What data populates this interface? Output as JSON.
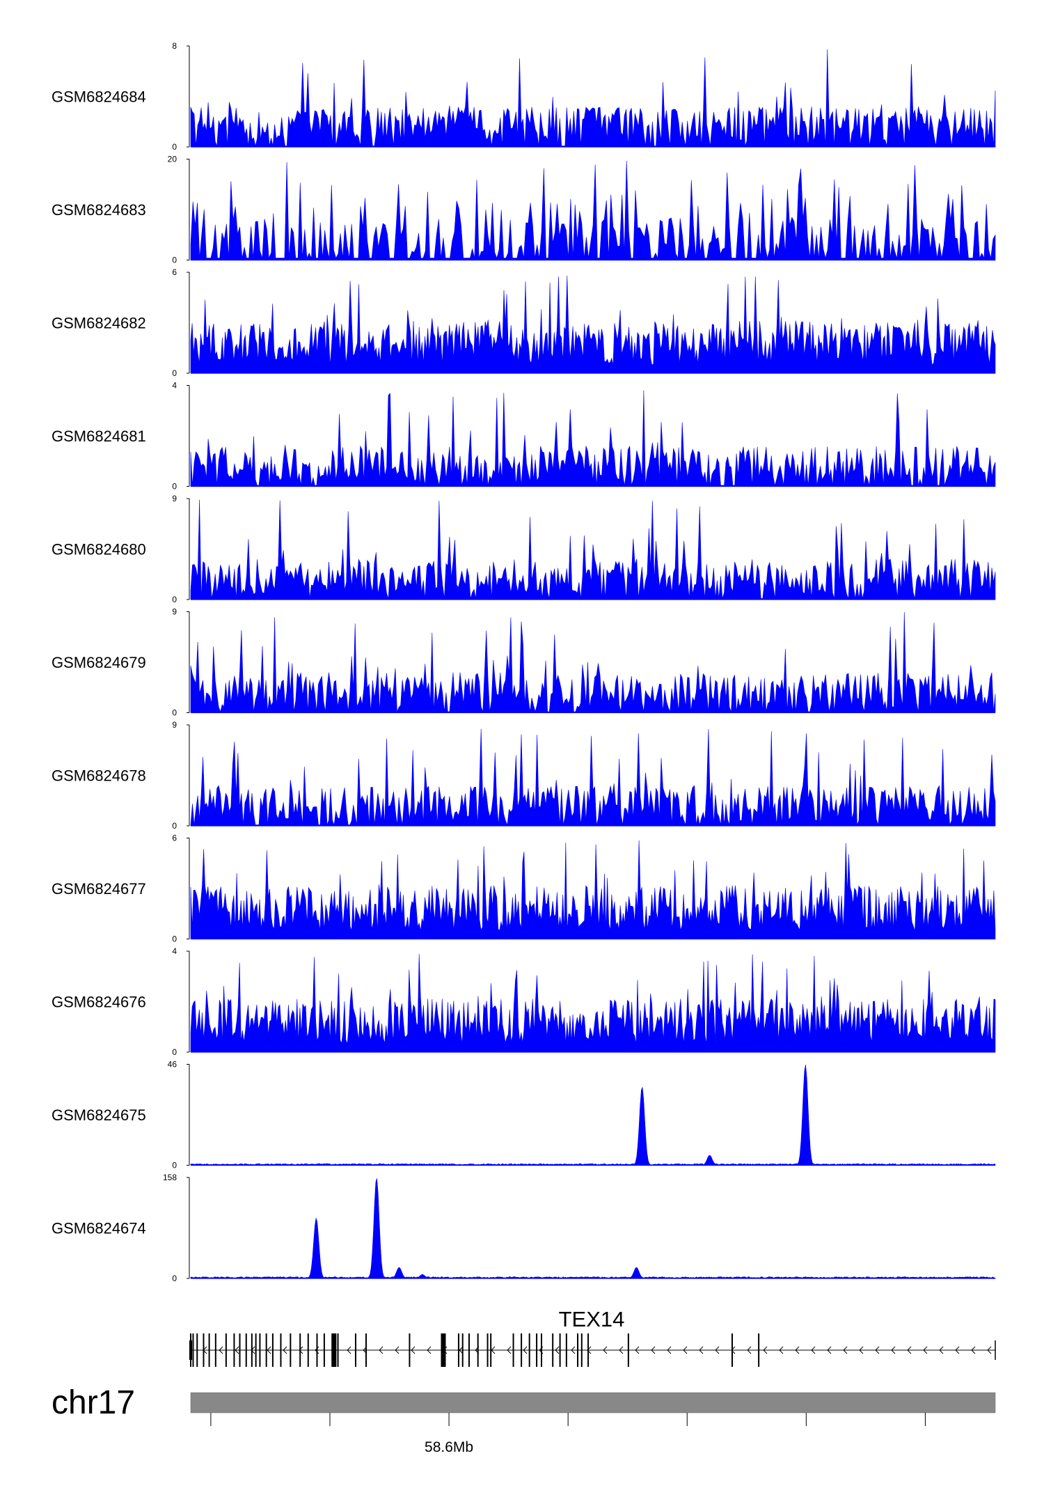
{
  "chart_data": {
    "type": "area",
    "title": "",
    "chromosome": "chr17",
    "position_label": "58.6Mb",
    "series_color": "#0000ff",
    "tracks": [
      {
        "name": "GSM6824684",
        "ymax": "8",
        "ymin": "0",
        "pattern": "noisy",
        "density": "medium"
      },
      {
        "name": "GSM6824683",
        "ymax": "20",
        "ymin": "0",
        "pattern": "noisy",
        "density": "sparse"
      },
      {
        "name": "GSM6824682",
        "ymax": "6",
        "ymin": "0",
        "pattern": "noisy",
        "density": "dense"
      },
      {
        "name": "GSM6824681",
        "ymax": "4",
        "ymin": "0",
        "pattern": "noisy",
        "density": "medium"
      },
      {
        "name": "GSM6824680",
        "ymax": "9",
        "ymin": "0",
        "pattern": "noisy",
        "density": "medium"
      },
      {
        "name": "GSM6824679",
        "ymax": "9",
        "ymin": "0",
        "pattern": "noisy",
        "density": "medium"
      },
      {
        "name": "GSM6824678",
        "ymax": "9",
        "ymin": "0",
        "pattern": "noisy",
        "density": "medium"
      },
      {
        "name": "GSM6824677",
        "ymax": "6",
        "ymin": "0",
        "pattern": "noisy",
        "density": "dense"
      },
      {
        "name": "GSM6824676",
        "ymax": "4",
        "ymin": "0",
        "pattern": "noisy",
        "density": "dense"
      },
      {
        "name": "GSM6824675",
        "ymax": "46",
        "ymin": "0",
        "pattern": "peaks",
        "peaks": [
          {
            "pos": 0.561,
            "height": 0.78
          },
          {
            "pos": 0.764,
            "height": 1.0
          },
          {
            "pos": 0.645,
            "height": 0.1
          }
        ]
      },
      {
        "name": "GSM6824674",
        "ymax": "158",
        "ymin": "0",
        "pattern": "peaks",
        "peaks": [
          {
            "pos": 0.156,
            "height": 0.6
          },
          {
            "pos": 0.231,
            "height": 1.0
          },
          {
            "pos": 0.259,
            "height": 0.11
          },
          {
            "pos": 0.554,
            "height": 0.11
          },
          {
            "pos": 0.288,
            "height": 0.04
          }
        ]
      }
    ],
    "gene": {
      "name": "TEX14",
      "strand": "-",
      "exons": [
        0.0,
        0.003,
        0.008,
        0.016,
        0.023,
        0.031,
        0.044,
        0.054,
        0.061,
        0.069,
        0.076,
        0.081,
        0.086,
        0.094,
        0.102,
        0.112,
        0.124,
        0.136,
        0.146,
        0.157,
        0.166,
        0.176,
        0.18,
        0.183,
        0.205,
        0.218,
        0.272,
        0.314,
        0.333,
        0.338,
        0.346,
        0.357,
        0.369,
        0.373,
        0.401,
        0.411,
        0.421,
        0.43,
        0.436,
        0.45,
        0.459,
        0.467,
        0.481,
        0.486,
        0.494,
        0.544,
        0.673,
        0.706
      ],
      "thick_exons": [
        0.314,
        0.178
      ]
    },
    "axis_ticks": [
      0.025,
      0.173,
      0.321,
      0.469,
      0.617,
      0.765,
      0.913
    ],
    "axis_label_tick_index": 2
  }
}
